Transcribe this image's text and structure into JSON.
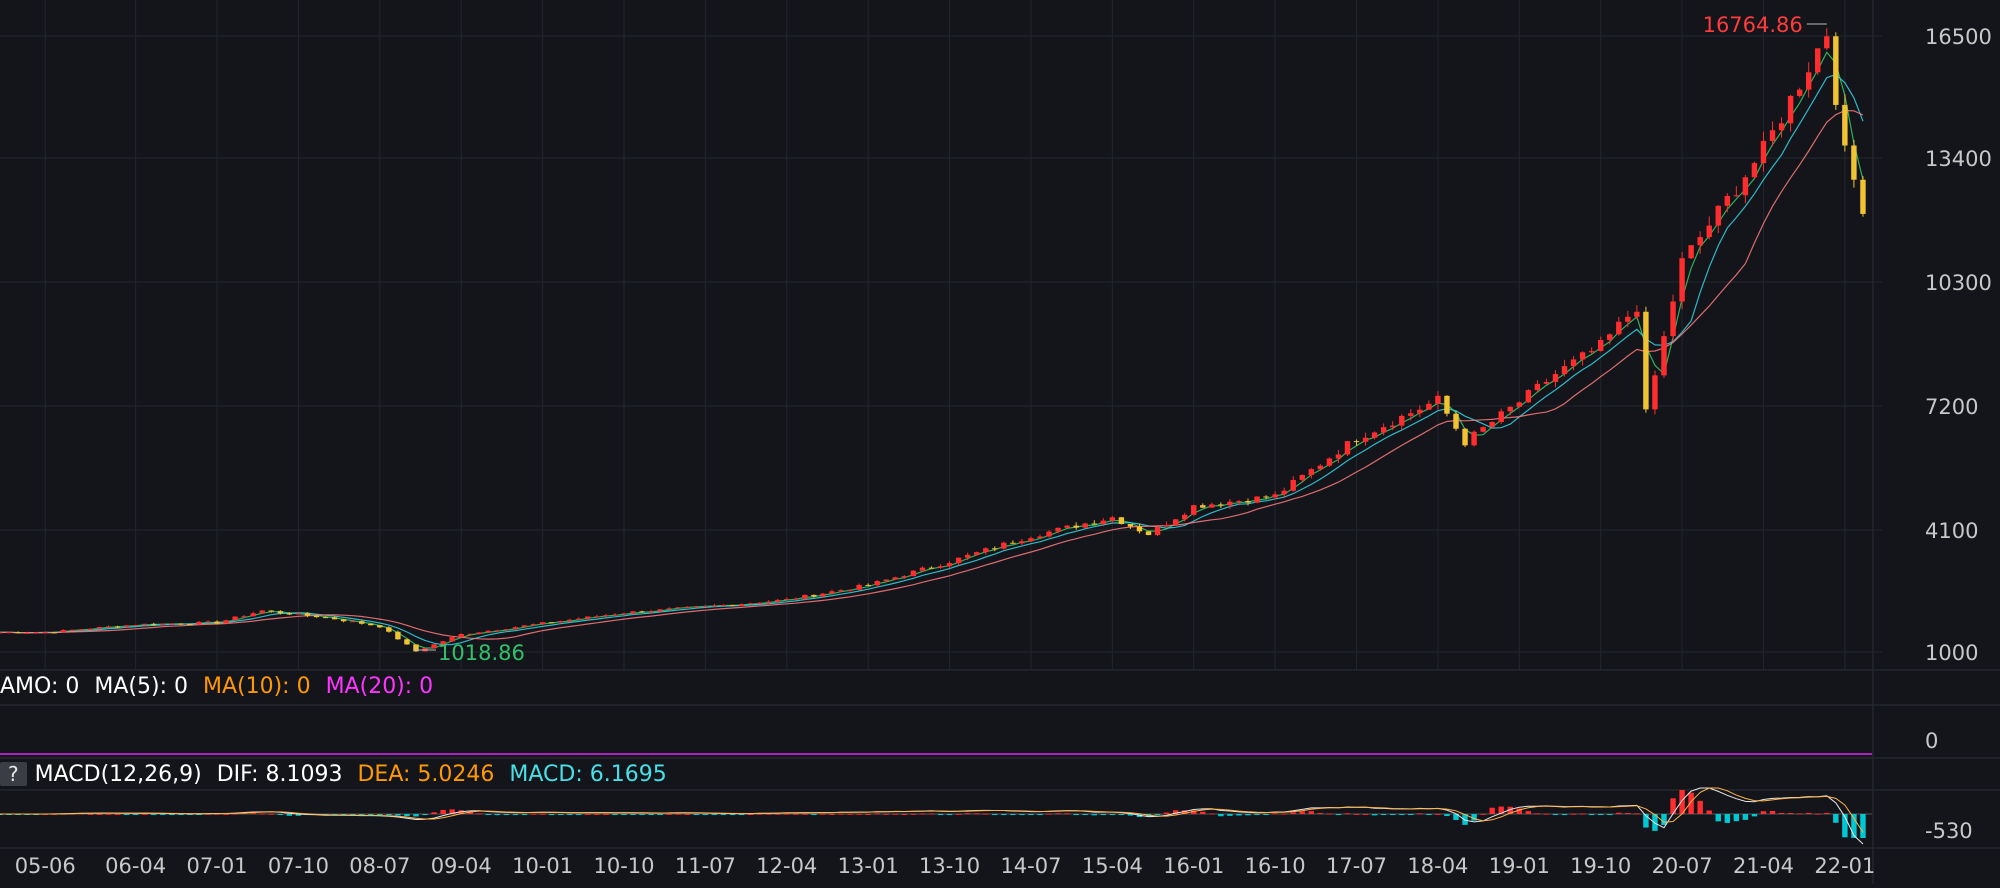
{
  "colors": {
    "background": "#13151b",
    "grid": "#23262d",
    "separator": "#2b2e35",
    "axis_text": "#c8c8c8",
    "up": "#ff2d2d",
    "down": "#00c8d2",
    "candle_yellow": "#f1c232",
    "ma5": "#ffffff",
    "ma10": "#ff9900",
    "ma20": "#ff33ff",
    "ma_green": "#33cc66",
    "ma_cyan": "#33d6e6",
    "ma_pink": "#ff7b7b",
    "dif": "#e8e8e8",
    "dea": "#ffb347",
    "macd": "#45e0e8",
    "high_label": "#ff3b3b",
    "low_label": "#2fc26a",
    "vol_line": "#b020c0"
  },
  "chart_data": [
    {
      "type": "candlestick",
      "panel": "price",
      "x_tick_labels": [
        "05-06",
        "06-04",
        "07-01",
        "07-10",
        "08-07",
        "09-04",
        "10-01",
        "10-10",
        "11-07",
        "12-04",
        "13-01",
        "13-10",
        "14-07",
        "15-04",
        "16-01",
        "16-10",
        "17-07",
        "18-04",
        "19-01",
        "19-10",
        "20-07",
        "21-04",
        "22-01"
      ],
      "y_tick_labels": [
        "16500",
        "13400",
        "10300",
        "7200",
        "4100",
        "1000"
      ],
      "y_ticks": [
        16500,
        13400,
        10300,
        7200,
        4100,
        1000
      ],
      "ylim": [
        1000,
        16500
      ],
      "annotations": [
        {
          "text": "16764.86",
          "x": "21-11",
          "y": 16764.86,
          "kind": "high"
        },
        {
          "text": "1018.86",
          "x": "08-11",
          "y": 1018.86,
          "kind": "low"
        }
      ],
      "series": [
        {
          "x": [
            "05-06",
            "06-04",
            "07-01",
            "07-06",
            "07-10",
            "08-01",
            "08-07",
            "08-11",
            "09-04",
            "10-01",
            "10-10",
            "11-07",
            "12-04",
            "13-01",
            "13-10",
            "14-07",
            "15-04",
            "15-08",
            "16-01",
            "16-10",
            "17-07",
            "18-04",
            "18-07",
            "19-01",
            "19-05",
            "19-10",
            "20-02",
            "20-03",
            "20-07",
            "21-04",
            "21-11",
            "21-12",
            "22-01",
            "22-03"
          ],
          "values": [
            1500,
            1700,
            1750,
            2050,
            1950,
            1880,
            1650,
            1019,
            1450,
            1730,
            2000,
            2150,
            2330,
            2700,
            3300,
            3950,
            4420,
            4000,
            4700,
            4950,
            6400,
            7350,
            6300,
            7300,
            8000,
            8700,
            9700,
            7000,
            10800,
            13600,
            16600,
            15000,
            13500,
            12200
          ]
        }
      ]
    },
    {
      "type": "line",
      "panel": "volume",
      "y_tick_labels": [
        "0"
      ],
      "series": [
        {
          "values": [
            0
          ]
        }
      ]
    },
    {
      "type": "bar",
      "panel": "macd",
      "y_tick_labels": [
        "-530"
      ]
    }
  ],
  "volume_legend": {
    "amo": "AMO: 0",
    "ma5": "MA(5): 0",
    "ma10": "MA(10): 0",
    "ma20": "MA(20): 0"
  },
  "macd_legend": {
    "help": "?",
    "name": "MACD(12,26,9)",
    "dif": "DIF: 8.1093",
    "dea": "DEA: 5.0246",
    "macd": "MACD: 6.1695"
  }
}
